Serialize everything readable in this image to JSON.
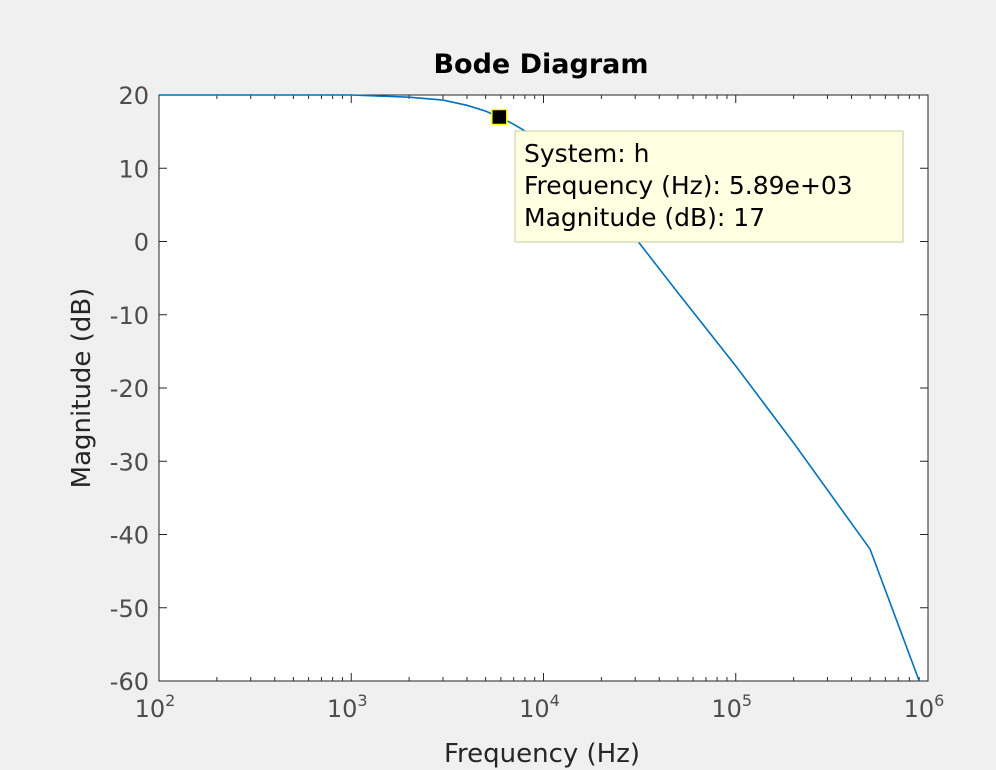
{
  "chart_data": {
    "type": "line",
    "title": "Bode Diagram",
    "xlabel": "Frequency  (Hz)",
    "ylabel": "Magnitude (dB)",
    "xscale": "log",
    "xlim": [
      100,
      1000000
    ],
    "ylim": [
      -60,
      20
    ],
    "x_ticks": [
      {
        "base": "10",
        "exp": "2",
        "value": 100
      },
      {
        "base": "10",
        "exp": "3",
        "value": 1000
      },
      {
        "base": "10",
        "exp": "4",
        "value": 10000
      },
      {
        "base": "10",
        "exp": "5",
        "value": 100000
      },
      {
        "base": "10",
        "exp": "6",
        "value": 1000000
      }
    ],
    "y_ticks": [
      20,
      10,
      0,
      -10,
      -20,
      -30,
      -40,
      -50,
      -60
    ],
    "grid": false,
    "line_color": "#0072bd",
    "series": [
      {
        "x": [
          100,
          300,
          1000,
          2000,
          3000,
          4000,
          5000,
          5890,
          7000,
          8000,
          10000,
          15000,
          20000,
          30000,
          50000,
          100000,
          200000,
          500000,
          900000
        ],
        "y": [
          20,
          20,
          20,
          19.7,
          19.3,
          18.6,
          17.8,
          17.0,
          16.0,
          15.1,
          13.3,
          9.0,
          5.8,
          0.5,
          -7.0,
          -17.0,
          -27.5,
          -42.0,
          -60.0
        ]
      }
    ],
    "datatip": {
      "x": 5890,
      "y": 17,
      "lines": [
        "System: h",
        "Frequency (Hz): 5.89e+03",
        "Magnitude (dB): 17"
      ]
    }
  }
}
